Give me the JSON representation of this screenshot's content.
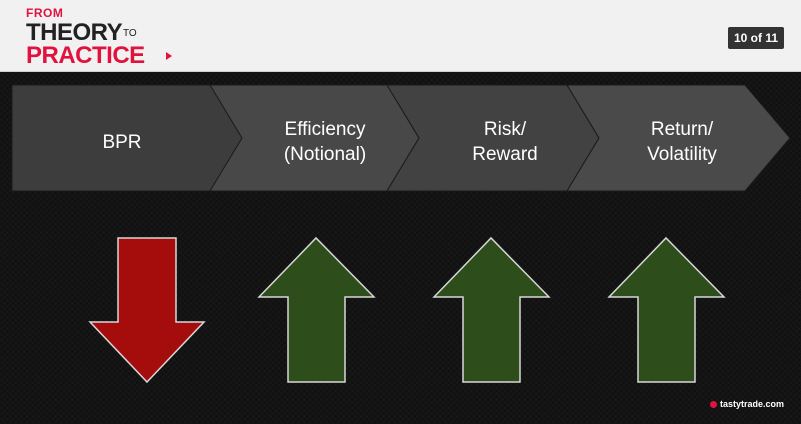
{
  "header": {
    "logo": {
      "from": "FROM",
      "theory": "THEORY",
      "to": "TO",
      "practice": "PRACTICE"
    },
    "page_indicator": "10 of 11"
  },
  "steps": [
    {
      "label_line1": "BPR",
      "label_line2": ""
    },
    {
      "label_line1": "Efficiency",
      "label_line2": "(Notional)"
    },
    {
      "label_line1": "Risk/",
      "label_line2": "Reward"
    },
    {
      "label_line1": "Return/",
      "label_line2": "Volatility"
    }
  ],
  "arrows": [
    {
      "direction": "down",
      "color": "#a50d0d"
    },
    {
      "direction": "up",
      "color": "#2d4d1a"
    },
    {
      "direction": "up",
      "color": "#2d4d1a"
    },
    {
      "direction": "up",
      "color": "#2d4d1a"
    }
  ],
  "colors": {
    "brand_red": "#e1123e",
    "chevron_dark": "#3d3d3d",
    "chevron_light": "#4a4a4a"
  },
  "watermark": "tastytrade.com"
}
